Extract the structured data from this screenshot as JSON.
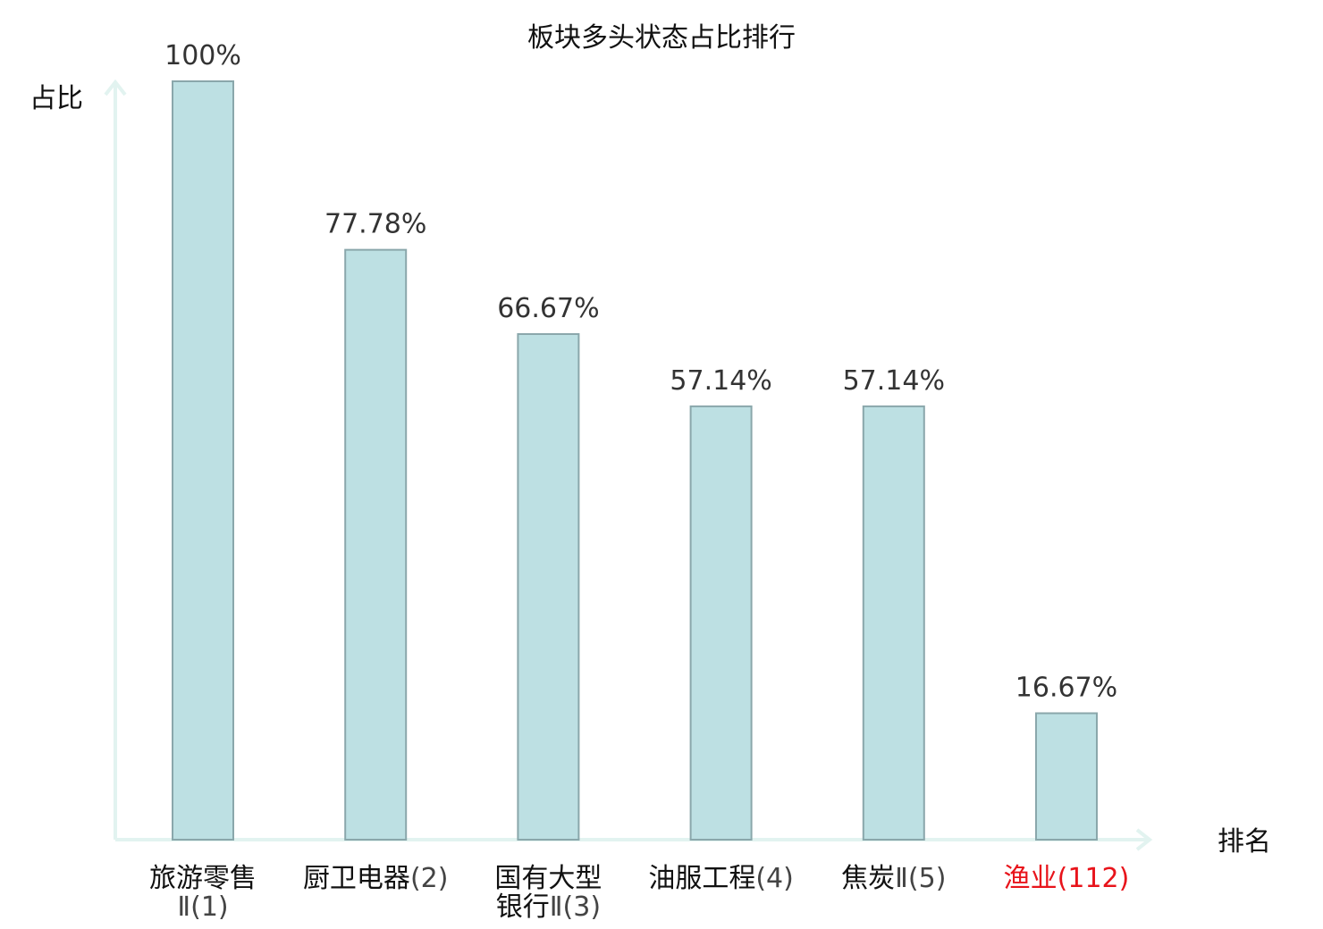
{
  "chart_data": {
    "type": "bar",
    "title": "板块多头状态占比排行",
    "ylabel": "占比",
    "xlabel": "排名",
    "ylim": [
      0,
      100
    ],
    "grid": false,
    "categories": [
      "旅游零售Ⅱ(1)",
      "厨卫电器(2)",
      "国有大型银行Ⅱ(3)",
      "油服工程(4)",
      "焦炭Ⅱ(5)",
      "渔业(112)"
    ],
    "tick_labels": [
      {
        "name": "旅游零售",
        "rank": "Ⅱ(1)",
        "highlight": false
      },
      {
        "name": "厨卫电器",
        "rank": "(2)",
        "highlight": false
      },
      {
        "name": "国有大型",
        "name2": "银行",
        "rank": "Ⅱ(3)",
        "highlight": false
      },
      {
        "name": "油服工程",
        "rank": "(4)",
        "highlight": false
      },
      {
        "name": "焦炭",
        "rank": "Ⅱ(5)",
        "highlight": false
      },
      {
        "name": "渔业",
        "rank": "(112)",
        "highlight": true
      }
    ],
    "values": [
      100,
      77.78,
      66.67,
      57.14,
      57.14,
      16.67
    ],
    "value_labels": [
      "100%",
      "77.78%",
      "66.67%",
      "57.14%",
      "57.14%",
      "16.67%"
    ],
    "colors": {
      "bar_fill": "#bde0e3",
      "bar_stroke": "#8aa7ab",
      "axis": "#e2f3f0",
      "highlight": "#e8141b",
      "text": "#111111",
      "value_text": "#333333"
    }
  }
}
